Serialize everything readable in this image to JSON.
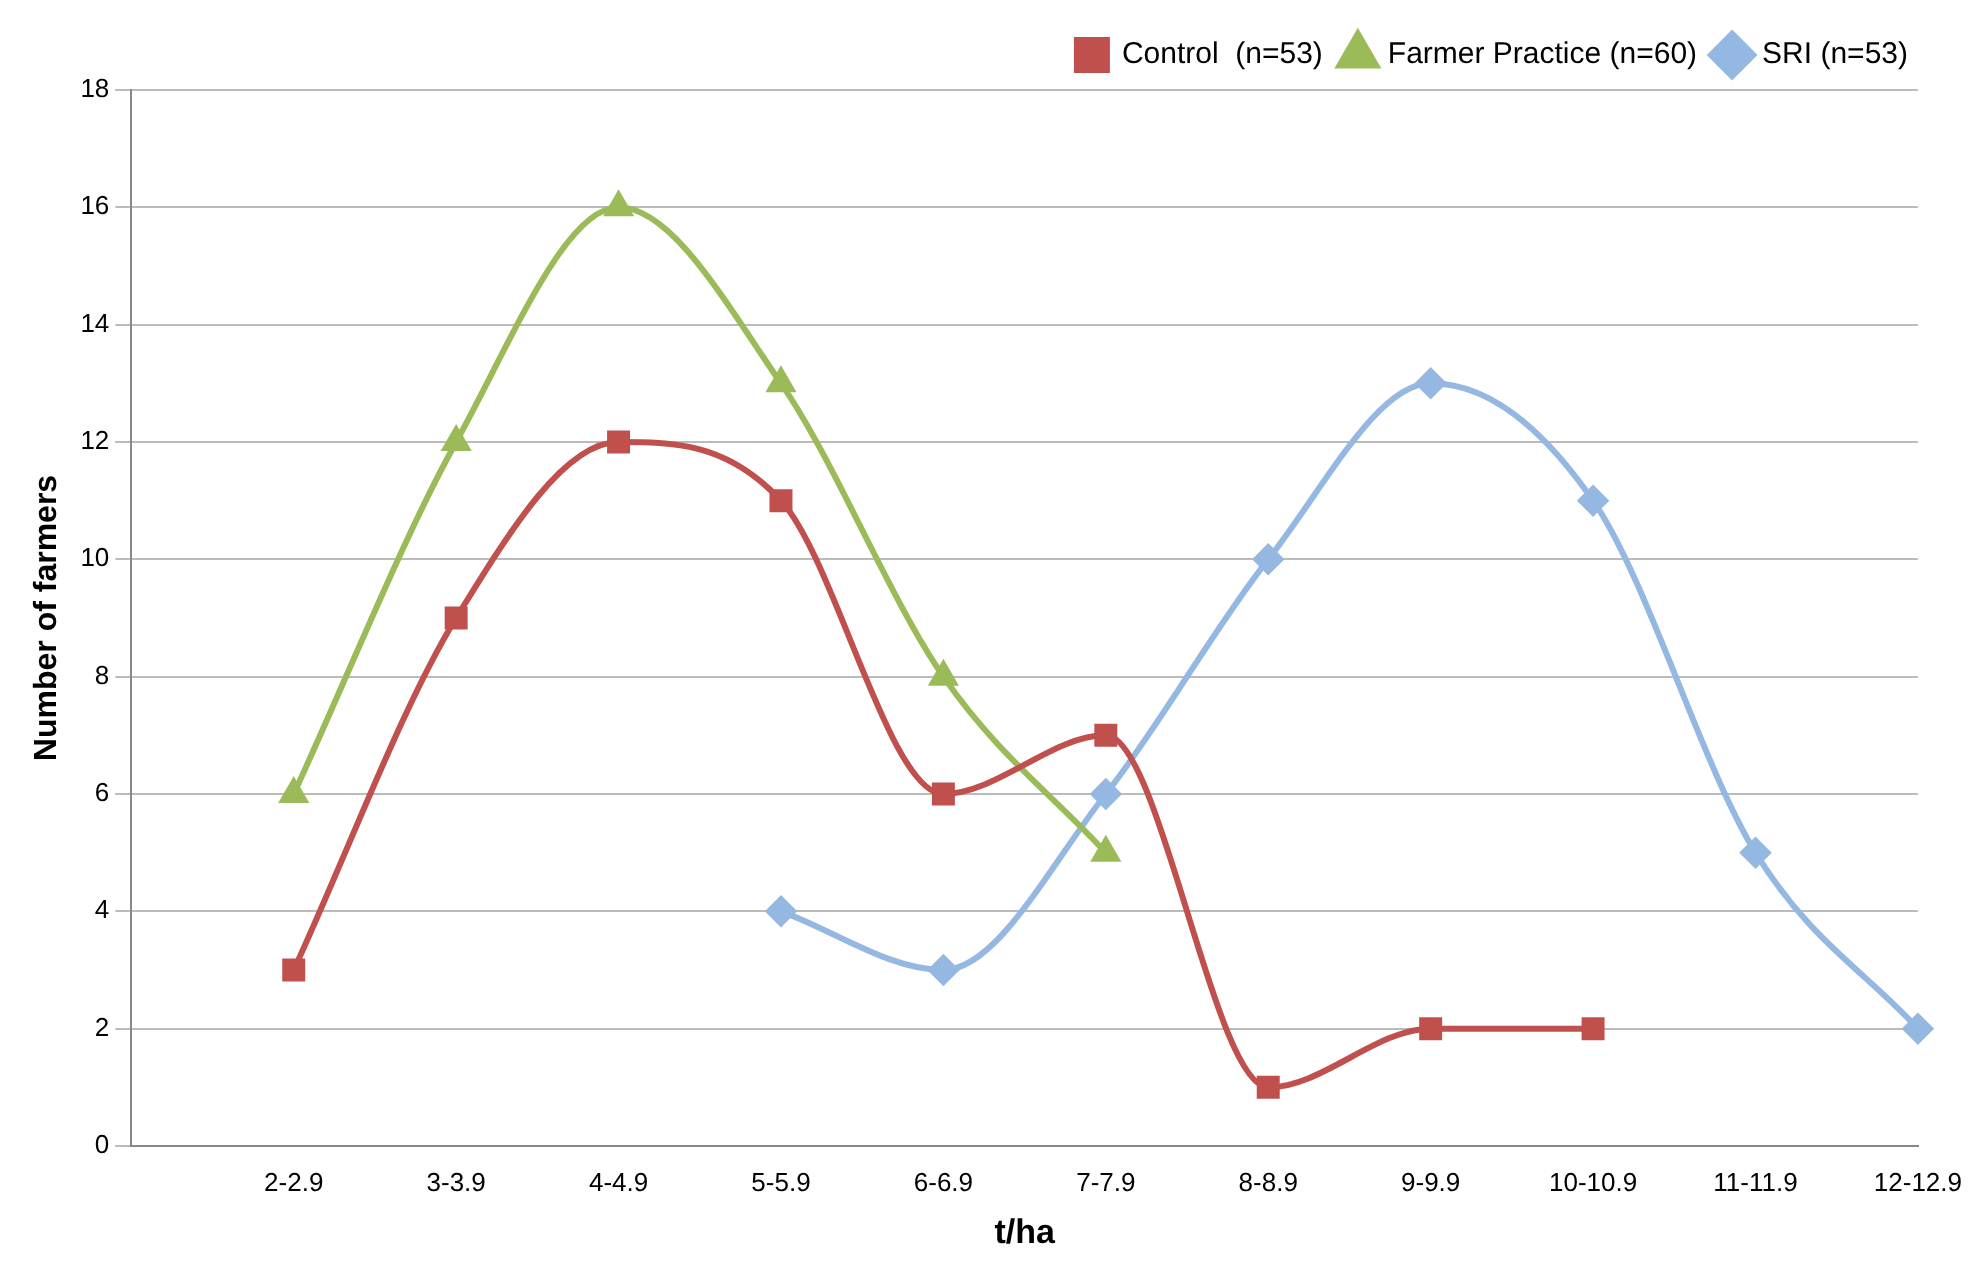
{
  "chart_data": {
    "type": "line",
    "xlabel": "t/ha",
    "ylabel": "Number of farmers",
    "categories": [
      null,
      "2-2.9",
      "3-3.9",
      "4-4.9",
      "5-5.9",
      "6-6.9",
      "7-7.9",
      "8-8.9",
      "9-9.9",
      "10-10.9",
      "11-11.9",
      "12-12.9"
    ],
    "series": [
      {
        "name": "Control  (n=53)",
        "color": "#c0504d",
        "marker": "square",
        "values": [
          null,
          3,
          9,
          12,
          11,
          6,
          7,
          1,
          2,
          2,
          null,
          null
        ]
      },
      {
        "name": "Farmer Practice (n=60)",
        "color": "#9bbb59",
        "marker": "triangle",
        "values": [
          null,
          6,
          12,
          16,
          13,
          8,
          5,
          null,
          null,
          null,
          null,
          null
        ]
      },
      {
        "name": "SRI (n=53)",
        "color": "#95b8e3",
        "marker": "diamond",
        "values": [
          null,
          null,
          null,
          null,
          4,
          3,
          6,
          10,
          13,
          11,
          5,
          2
        ]
      }
    ],
    "ylim": [
      0,
      18
    ],
    "yticks": [
      0,
      2,
      4,
      6,
      8,
      10,
      12,
      14,
      16,
      18
    ],
    "grid": "y",
    "legend": "top right"
  }
}
